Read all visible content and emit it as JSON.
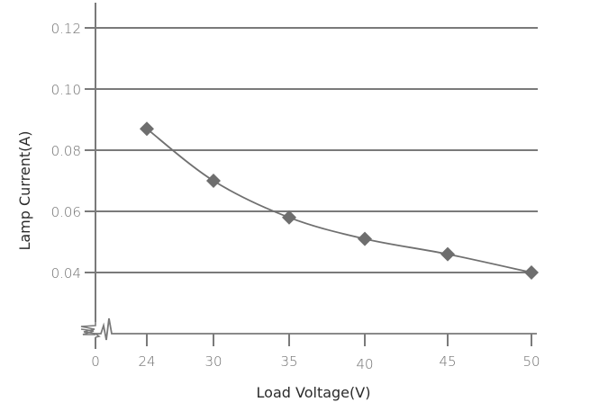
{
  "chart_data": {
    "type": "line",
    "title": "",
    "xlabel": "Load Voltage(V)",
    "ylabel": "Lamp Current(A)",
    "x_ticks": [
      "0",
      "24",
      "30",
      "35",
      "40",
      "45",
      "50"
    ],
    "y_ticks": [
      "0.04",
      "0.06",
      "0.08",
      "0.10",
      "0.12"
    ],
    "ylim": [
      0.02,
      0.125
    ],
    "grid": {
      "horizontal": true,
      "vertical": false
    },
    "axis_break": {
      "x": true,
      "y": true
    },
    "legend": null,
    "marker": "diamond",
    "series": [
      {
        "name": "Lamp Current",
        "x": [
          24,
          30,
          35,
          40,
          45,
          50
        ],
        "values": [
          0.087,
          0.07,
          0.058,
          0.051,
          0.046,
          0.04
        ]
      }
    ]
  },
  "colors": {
    "axis": "#7a7a7a",
    "grid": "#7a7a7a",
    "series": "#707070",
    "marker": "#6e6e6e",
    "tick_text": "#6e6e6e",
    "title_text": "#2b2b2b"
  }
}
